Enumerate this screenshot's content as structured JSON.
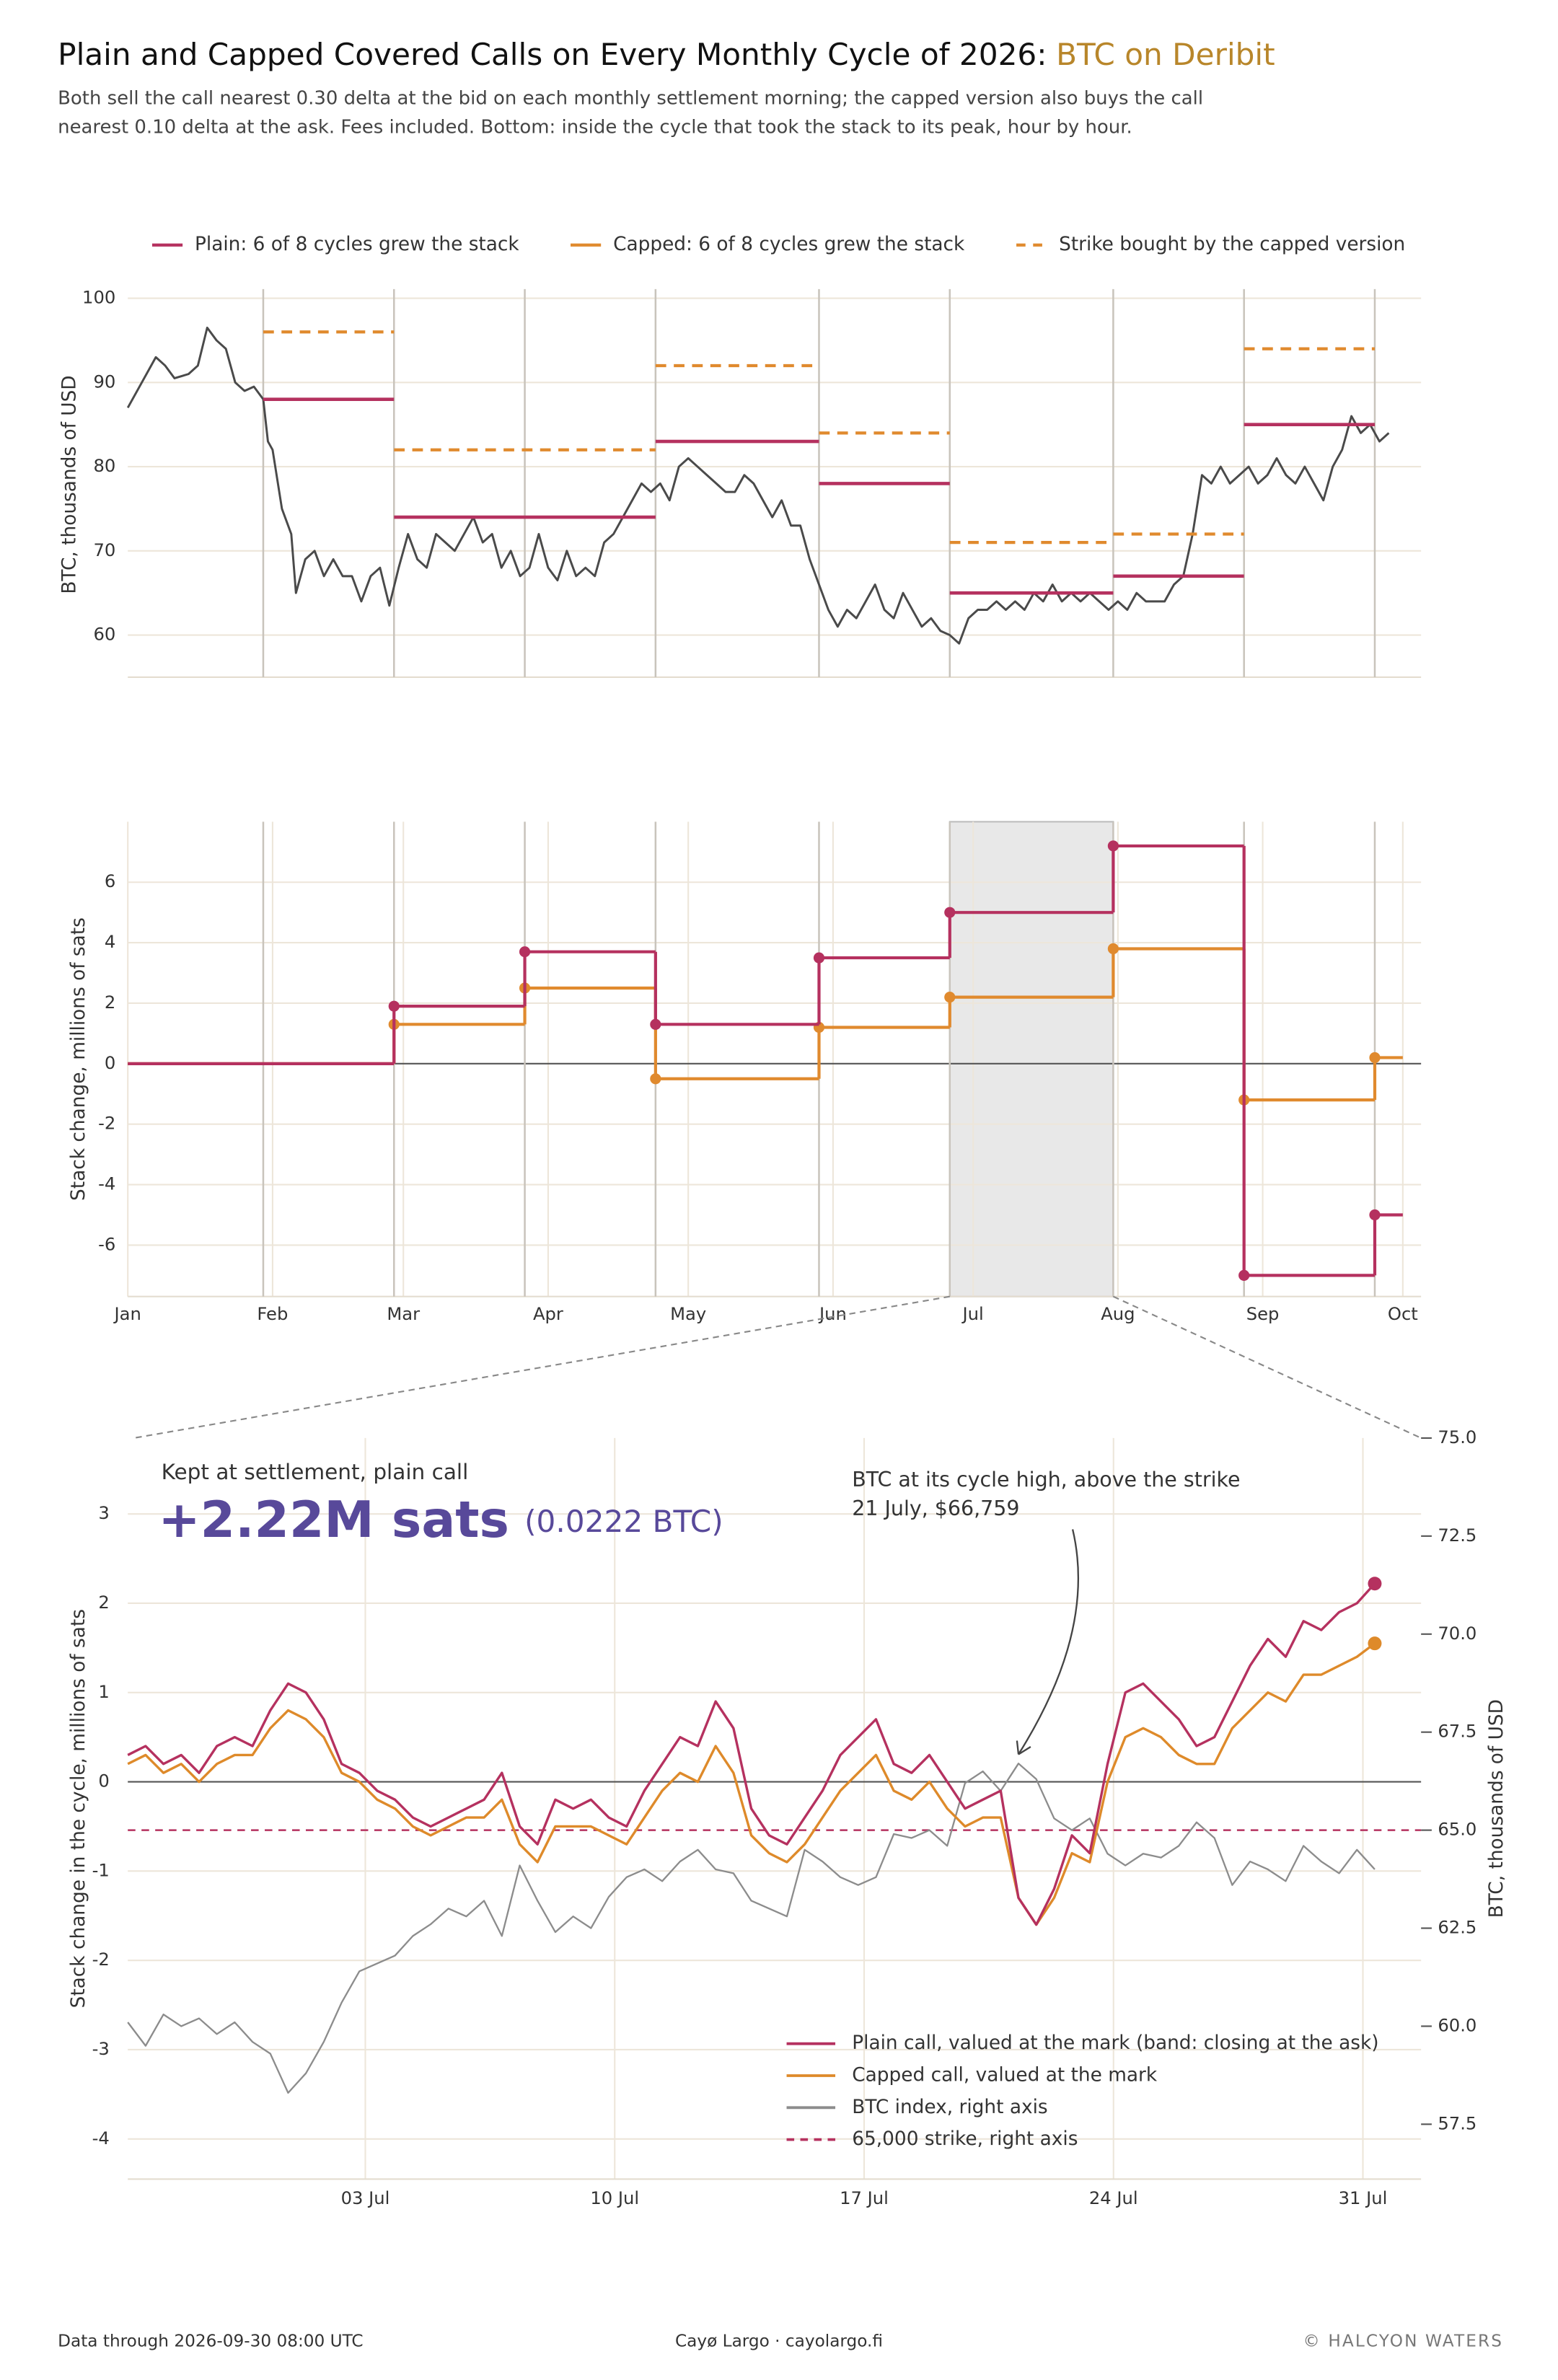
{
  "title": "Plain and Capped Covered Calls on Every Monthly Cycle of 2026:",
  "title_highlight": "BTC on Deribit",
  "subtitle_lines": [
    "Both sell the call nearest 0.30 delta at the bid on each monthly settlement morning; the capped version also buys the call",
    "nearest 0.10 delta at the ask. Fees included. Bottom: inside the cycle that took the stack to its peak, hour by hour."
  ],
  "footer": {
    "left": "Data through 2026-09-30 08:00 UTC",
    "center": "Cayø Largo  ·  cayolargo.fi",
    "right": "© HALCYON WATERS"
  },
  "chart_data": [
    {
      "type": "line",
      "ylabel": "BTC, thousands of USD",
      "xlim": [
        0,
        273
      ],
      "ylim": [
        55,
        100
      ],
      "yticks": [
        60,
        70,
        80,
        90,
        100
      ],
      "grid": true,
      "settlements": [
        29,
        57,
        85,
        113,
        148,
        176,
        211,
        239,
        267
      ],
      "color": "#4a4a4a",
      "x": [
        0,
        3,
        6,
        8,
        10,
        13,
        15,
        17,
        19,
        21,
        23,
        25,
        27,
        29,
        30,
        31,
        33,
        35,
        36,
        38,
        40,
        42,
        44,
        46,
        48,
        50,
        52,
        54,
        56,
        58,
        60,
        62,
        64,
        66,
        68,
        70,
        72,
        74,
        76,
        78,
        80,
        82,
        84,
        86,
        88,
        90,
        92,
        94,
        96,
        98,
        100,
        102,
        104,
        106,
        108,
        110,
        112,
        114,
        116,
        118,
        120,
        122,
        124,
        126,
        128,
        130,
        132,
        134,
        136,
        138,
        140,
        142,
        144,
        146,
        148,
        150,
        152,
        154,
        156,
        158,
        160,
        162,
        164,
        166,
        168,
        170,
        172,
        174,
        176,
        178,
        180,
        182,
        184,
        186,
        188,
        190,
        192,
        194,
        196,
        198,
        200,
        202,
        204,
        206,
        208,
        210,
        212,
        214,
        216,
        218,
        220,
        222,
        224,
        226,
        228,
        230,
        232,
        234,
        236,
        238,
        240,
        242,
        244,
        246,
        248,
        250,
        252,
        254,
        256,
        258,
        260,
        262,
        264,
        266,
        268,
        270
      ],
      "values": [
        87,
        90,
        93,
        92,
        90.5,
        91,
        92,
        96.5,
        95,
        94,
        90,
        89,
        89.5,
        88,
        83,
        82,
        75,
        72,
        65,
        69,
        70,
        67,
        69,
        67,
        67,
        64,
        67,
        68,
        63.5,
        68,
        72,
        69,
        68,
        72,
        71,
        70,
        72,
        74,
        71,
        72,
        68,
        70,
        67,
        68,
        72,
        68,
        66.5,
        70,
        67,
        68,
        67,
        71,
        72,
        74,
        76,
        78,
        77,
        78,
        76,
        80,
        81,
        80,
        79,
        78,
        77,
        77,
        79,
        78,
        76,
        74,
        76,
        73,
        73,
        69,
        66,
        63,
        61,
        63,
        62,
        64,
        66,
        63,
        62,
        65,
        63,
        61,
        62,
        60.5,
        60,
        59,
        62,
        63,
        63,
        64,
        63,
        64,
        63,
        65,
        64,
        66,
        64,
        65,
        64,
        65,
        64,
        63,
        64,
        63,
        65,
        64,
        64,
        64,
        66,
        67,
        72,
        79,
        78,
        80,
        78,
        79,
        80,
        78,
        79,
        81,
        79,
        78,
        80,
        78,
        76,
        80,
        82,
        86,
        84,
        85,
        83,
        84
      ],
      "strikes": {
        "starts": [
          29,
          57,
          113,
          148,
          176,
          211,
          239
        ],
        "ends": [
          57,
          113,
          148,
          176,
          211,
          239,
          267
        ],
        "plain": [
          88,
          74,
          83,
          78,
          65,
          67,
          85
        ],
        "capped": [
          96,
          82,
          92,
          84,
          71,
          72,
          94
        ],
        "plain_color": "#b5315f",
        "capped_color": "#e08a2e"
      },
      "legend": [
        {
          "name": "Plain: 6 of 8 cycles grew the stack",
          "color": "#b5315f",
          "dashed": false
        },
        {
          "name": "Capped: 6 of 8 cycles grew the stack",
          "color": "#e08a2e",
          "dashed": false
        },
        {
          "name": "Strike bought by the capped version",
          "color": "#e08a2e",
          "dashed": true
        }
      ]
    },
    {
      "type": "step",
      "ylabel": "Stack change, millions of sats",
      "xlim": [
        0,
        273
      ],
      "ylim": [
        -7.7,
        8.0
      ],
      "yticks": [
        -6,
        -4,
        -2,
        0,
        2,
        4,
        6
      ],
      "grid": true,
      "xticks": [
        {
          "value": 0,
          "label": "Jan"
        },
        {
          "value": 31,
          "label": "Feb"
        },
        {
          "value": 59,
          "label": "Mar"
        },
        {
          "value": 90,
          "label": "Apr"
        },
        {
          "value": 120,
          "label": "May"
        },
        {
          "value": 151,
          "label": "Jun"
        },
        {
          "value": 181,
          "label": "Jul"
        },
        {
          "value": 212,
          "label": "Aug"
        },
        {
          "value": 243,
          "label": "Sep"
        },
        {
          "value": 273,
          "label": "Oct"
        }
      ],
      "x": [
        0,
        57,
        85,
        113,
        148,
        176,
        211,
        239,
        267
      ],
      "series": [
        {
          "color": "#b5315f",
          "values": [
            0,
            1.9,
            3.7,
            1.3,
            3.5,
            5.0,
            7.2,
            -7.0,
            -5.0
          ]
        },
        {
          "color": "#e08a2e",
          "values": [
            0,
            1.3,
            2.5,
            -0.5,
            1.2,
            2.2,
            3.8,
            -1.2,
            0.2
          ]
        }
      ]
    },
    {
      "type": "line",
      "ylabel": "Stack change in the cycle, millions of sats",
      "y2label": "BTC, thousands of USD",
      "xlim": [
        0,
        36.3
      ],
      "ylim": [
        -4.45,
        3.85
      ],
      "y2lim": [
        56.1,
        75
      ],
      "xticks": [
        {
          "value": 6.667,
          "label": "03 Jul"
        },
        {
          "value": 13.667,
          "label": "10 Jul"
        },
        {
          "value": 20.667,
          "label": "17 Jul"
        },
        {
          "value": 27.667,
          "label": "24 Jul"
        },
        {
          "value": 34.667,
          "label": "31 Jul"
        }
      ],
      "yticks": [
        -4,
        -3,
        -2,
        -1,
        0,
        1,
        2,
        3
      ],
      "y2ticks": [
        {
          "value": 57.5,
          "label": "57.5"
        },
        {
          "value": 60,
          "label": "60.0"
        },
        {
          "value": 62.5,
          "label": "62.5"
        },
        {
          "value": 65,
          "label": "65.0"
        },
        {
          "value": 67.5,
          "label": "67.5"
        },
        {
          "value": 70,
          "label": "70.0"
        },
        {
          "value": 72.5,
          "label": "72.5"
        },
        {
          "value": 75,
          "label": "75.0"
        }
      ],
      "grid": true,
      "x": [
        0,
        0.5,
        1,
        1.5,
        2,
        2.5,
        3,
        3.5,
        4,
        4.5,
        5,
        5.5,
        6,
        6.5,
        7,
        7.5,
        8,
        8.5,
        9,
        9.5,
        10,
        10.5,
        11,
        11.5,
        12,
        12.5,
        13,
        13.5,
        14,
        14.5,
        15,
        15.5,
        16,
        16.5,
        17,
        17.5,
        18,
        18.5,
        19,
        19.5,
        20,
        20.5,
        21,
        21.5,
        22,
        22.5,
        23,
        23.5,
        24,
        24.5,
        25,
        25.5,
        26,
        26.5,
        27,
        27.5,
        28,
        28.5,
        29,
        29.5,
        30,
        30.5,
        31,
        31.5,
        32,
        32.5,
        33,
        33.5,
        34,
        34.5,
        35
      ],
      "series": [
        {
          "name": "Plain call, valued at the mark (band: closing at the ask)",
          "color": "#b5315f",
          "values": [
            0.3,
            0.4,
            0.2,
            0.3,
            0.1,
            0.4,
            0.5,
            0.4,
            0.8,
            1.1,
            1.0,
            0.7,
            0.2,
            0.1,
            -0.1,
            -0.2,
            -0.4,
            -0.5,
            -0.4,
            -0.3,
            -0.2,
            0.1,
            -0.5,
            -0.7,
            -0.2,
            -0.3,
            -0.2,
            -0.4,
            -0.5,
            -0.1,
            0.2,
            0.5,
            0.4,
            0.9,
            0.6,
            -0.3,
            -0.6,
            -0.7,
            -0.4,
            -0.1,
            0.3,
            0.5,
            0.7,
            0.2,
            0.1,
            0.3,
            0.0,
            -0.3,
            -0.2,
            -0.1,
            -1.3,
            -1.6,
            -1.2,
            -0.6,
            -0.8,
            0.2,
            1.0,
            1.1,
            0.9,
            0.7,
            0.4,
            0.5,
            0.9,
            1.3,
            1.6,
            1.4,
            1.8,
            1.7,
            1.9,
            2.0,
            2.22
          ]
        },
        {
          "name": "Capped call, valued at the mark",
          "color": "#de8a2a",
          "values": [
            0.2,
            0.3,
            0.1,
            0.2,
            0.0,
            0.2,
            0.3,
            0.3,
            0.6,
            0.8,
            0.7,
            0.5,
            0.1,
            0.0,
            -0.2,
            -0.3,
            -0.5,
            -0.6,
            -0.5,
            -0.4,
            -0.4,
            -0.2,
            -0.7,
            -0.9,
            -0.5,
            -0.5,
            -0.5,
            -0.6,
            -0.7,
            -0.4,
            -0.1,
            0.1,
            0.0,
            0.4,
            0.1,
            -0.6,
            -0.8,
            -0.9,
            -0.7,
            -0.4,
            -0.1,
            0.1,
            0.3,
            -0.1,
            -0.2,
            0.0,
            -0.3,
            -0.5,
            -0.4,
            -0.4,
            -1.3,
            -1.6,
            -1.3,
            -0.8,
            -0.9,
            0.0,
            0.5,
            0.6,
            0.5,
            0.3,
            0.2,
            0.2,
            0.6,
            0.8,
            1.0,
            0.9,
            1.2,
            1.2,
            1.3,
            1.4,
            1.55
          ]
        },
        {
          "name": "BTC index, right axis",
          "color": "#8c8c8c",
          "axis": "y2",
          "values": [
            60.1,
            59.5,
            60.3,
            60.0,
            60.2,
            59.8,
            60.1,
            59.6,
            59.3,
            58.3,
            58.8,
            59.6,
            60.6,
            61.4,
            61.6,
            61.8,
            62.3,
            62.6,
            63.0,
            62.8,
            63.2,
            62.3,
            64.1,
            63.2,
            62.4,
            62.8,
            62.5,
            63.3,
            63.8,
            64.0,
            63.7,
            64.2,
            64.5,
            64.0,
            63.9,
            63.2,
            63.0,
            62.8,
            64.5,
            64.2,
            63.8,
            63.6,
            63.8,
            64.9,
            64.8,
            65.0,
            64.6,
            66.2,
            66.5,
            66.0,
            66.7,
            66.3,
            65.3,
            65.0,
            65.3,
            64.4,
            64.1,
            64.4,
            64.3,
            64.6,
            65.2,
            64.8,
            63.6,
            64.2,
            64.0,
            63.7,
            64.6,
            64.2,
            63.9,
            64.5,
            64.0
          ]
        }
      ],
      "strike": {
        "name": "65,000 strike, right axis",
        "value": 65,
        "color": "#b5315f"
      },
      "annotations": {
        "kept_label": "Kept at settlement, plain call",
        "kept_value_label": "+2.22M sats",
        "kept_btc_label": "(0.0222 BTC)",
        "high_label": "BTC at its cycle high, above the strike",
        "high_date_label": "21 July, $66,759",
        "headline_color": "#58499a"
      }
    }
  ]
}
